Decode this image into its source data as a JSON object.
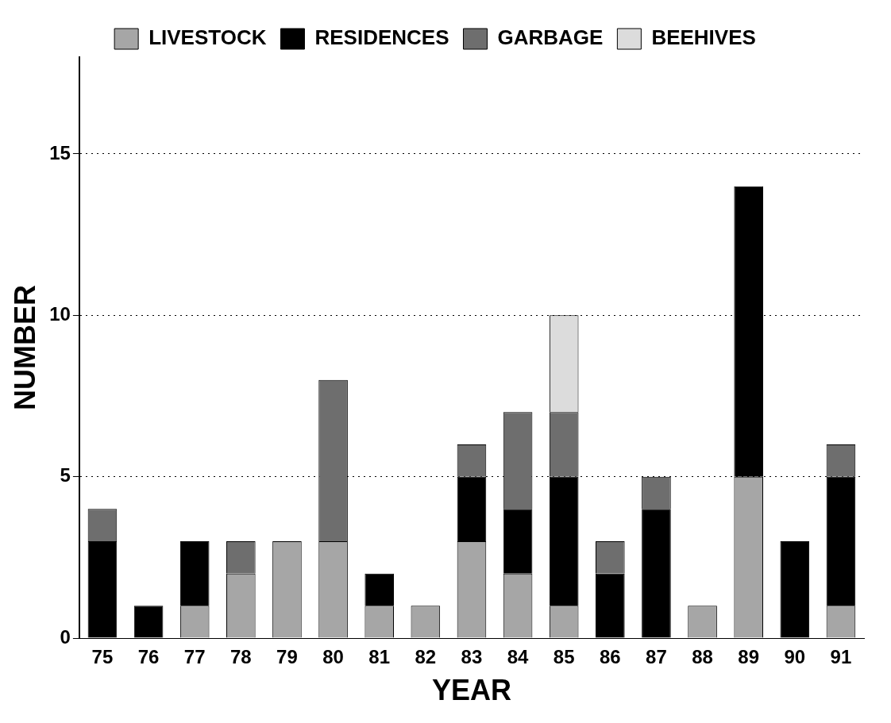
{
  "chart_data": {
    "type": "bar",
    "stacked": true,
    "xlabel": "YEAR",
    "ylabel": "NUMBER",
    "categories": [
      "75",
      "76",
      "77",
      "78",
      "79",
      "80",
      "81",
      "82",
      "83",
      "84",
      "85",
      "86",
      "87",
      "88",
      "89",
      "90",
      "91"
    ],
    "series": [
      {
        "name": "LIVESTOCK",
        "color": "#a6a6a6",
        "values": [
          0,
          0,
          1,
          2,
          3,
          3,
          1,
          1,
          3,
          2,
          1,
          0,
          0,
          1,
          5,
          0,
          1
        ]
      },
      {
        "name": "RESIDENCES",
        "color": "#000000",
        "values": [
          3,
          1,
          2,
          0,
          0,
          0,
          1,
          0,
          2,
          2,
          4,
          2,
          4,
          0,
          9,
          3,
          4
        ]
      },
      {
        "name": "GARBAGE",
        "color": "#6e6e6e",
        "values": [
          1,
          0,
          0,
          1,
          0,
          5,
          0,
          0,
          1,
          3,
          2,
          1,
          1,
          0,
          0,
          0,
          1
        ]
      },
      {
        "name": "BEEHIVES",
        "color": "#dcdcdc",
        "values": [
          0,
          0,
          0,
          0,
          0,
          0,
          0,
          0,
          0,
          0,
          3,
          0,
          0,
          0,
          0,
          0,
          0
        ]
      }
    ],
    "ylim": [
      0,
      18
    ],
    "yticks": [
      0,
      5,
      10,
      15
    ],
    "grid": "y",
    "line_style": "dotted",
    "legend": "top"
  }
}
